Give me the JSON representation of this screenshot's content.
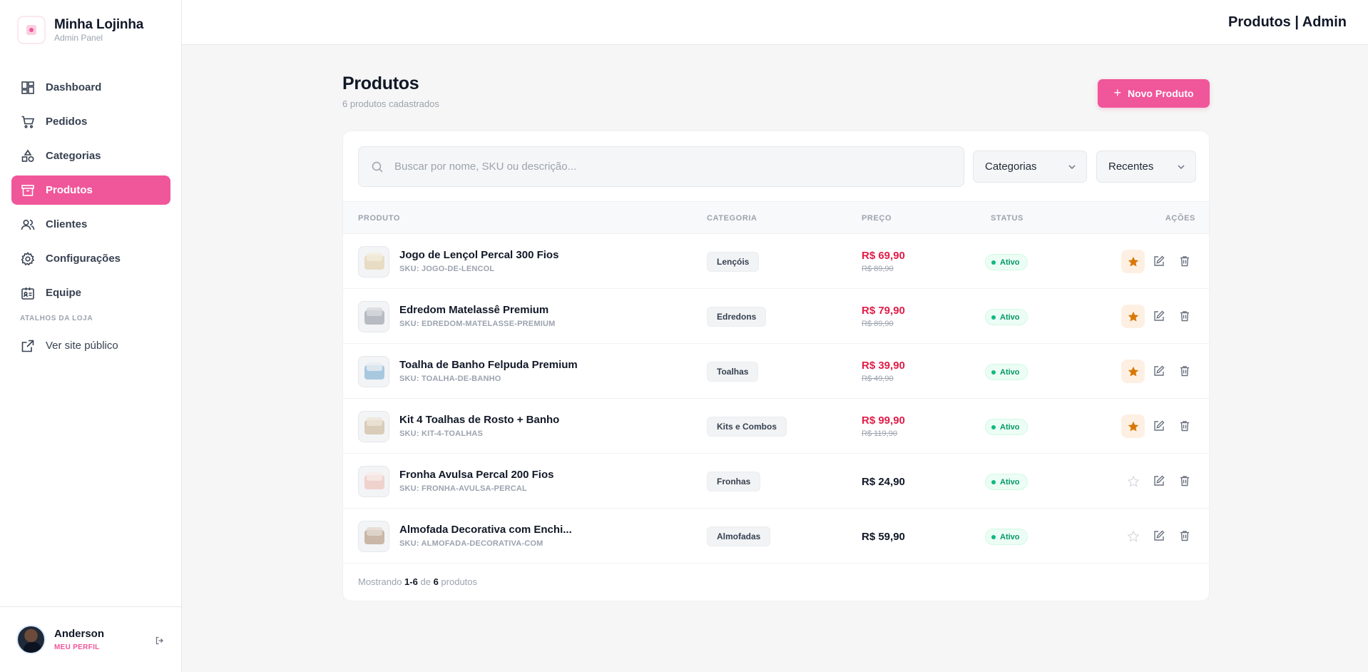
{
  "brand": {
    "name": "Minha Lojinha",
    "subtitle": "Admin Panel"
  },
  "nav": {
    "items": [
      {
        "label": "Dashboard",
        "icon": "dashboard-icon"
      },
      {
        "label": "Pedidos",
        "icon": "cart-icon"
      },
      {
        "label": "Categorias",
        "icon": "shapes-icon"
      },
      {
        "label": "Produtos",
        "icon": "archive-icon",
        "active": true
      },
      {
        "label": "Clientes",
        "icon": "users-icon"
      },
      {
        "label": "Configurações",
        "icon": "gear-icon"
      },
      {
        "label": "Equipe",
        "icon": "id-card-icon"
      }
    ],
    "section_label": "ATALHOS DA LOJA",
    "shortcut": {
      "label": "Ver site público",
      "icon": "external-link-icon"
    }
  },
  "user": {
    "name": "Anderson",
    "link": "MEU PERFIL"
  },
  "topbar": {
    "title": "Produtos | Admin"
  },
  "page": {
    "title": "Produtos",
    "subtitle": "6 produtos cadastrados",
    "new_button": "Novo Produto"
  },
  "filters": {
    "search_placeholder": "Buscar por nome, SKU ou descrição...",
    "category": "Categorias",
    "sort": "Recentes"
  },
  "table": {
    "headers": {
      "product": "PRODUTO",
      "category": "CATEGORIA",
      "price": "PREÇO",
      "status": "STATUS",
      "actions": "AÇÕES"
    },
    "rows": [
      {
        "name": "Jogo de Lençol Percal 300 Fios",
        "sku": "SKU: JOGO-DE-LENCOL",
        "category": "Lençóis",
        "price": "R$ 69,90",
        "old_price": "R$ 89,90",
        "status": "Ativo",
        "featured": true
      },
      {
        "name": "Edredom Matelassê Premium",
        "sku": "SKU: EDREDOM-MATELASSE-PREMIUM",
        "category": "Edredons",
        "price": "R$ 79,90",
        "old_price": "R$ 89,90",
        "status": "Ativo",
        "featured": true
      },
      {
        "name": "Toalha de Banho Felpuda Premium",
        "sku": "SKU: TOALHA-DE-BANHO",
        "category": "Toalhas",
        "price": "R$ 39,90",
        "old_price": "R$ 49,90",
        "status": "Ativo",
        "featured": true
      },
      {
        "name": "Kit 4 Toalhas de Rosto + Banho",
        "sku": "SKU: KIT-4-TOALHAS",
        "category": "Kits e Combos",
        "price": "R$ 99,90",
        "old_price": "R$ 119,90",
        "status": "Ativo",
        "featured": true
      },
      {
        "name": "Fronha Avulsa Percal 200 Fios",
        "sku": "SKU: FRONHA-AVULSA-PERCAL",
        "category": "Fronhas",
        "price": "R$ 24,90",
        "old_price": "",
        "status": "Ativo",
        "featured": false
      },
      {
        "name": "Almofada Decorativa com Enchi...",
        "sku": "SKU: ALMOFADA-DECORATIVA-COM",
        "category": "Almofadas",
        "price": "R$ 59,90",
        "old_price": "",
        "status": "Ativo",
        "featured": false
      }
    ],
    "footer": {
      "prefix": "Mostrando",
      "range": "1-6",
      "of": "de",
      "total": "6",
      "suffix": "produtos"
    }
  },
  "colors": {
    "accent": "#f0569a",
    "sale": "#e11d48",
    "active": "#059669",
    "star": "#d97706"
  }
}
